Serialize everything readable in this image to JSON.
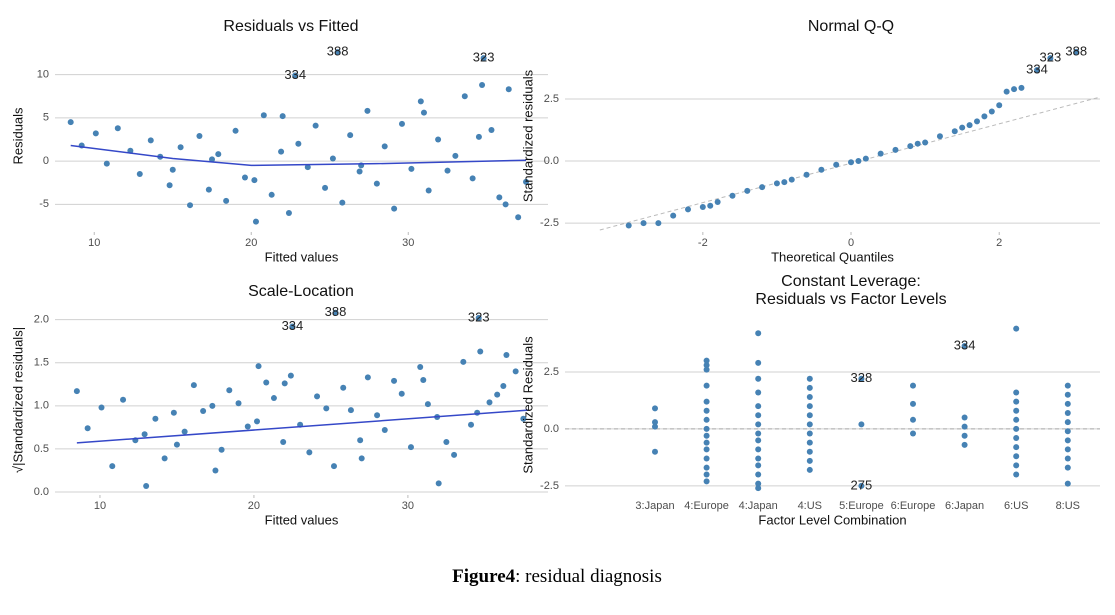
{
  "chart_data": [
    {
      "type": "scatter",
      "title": "Residuals vs Fitted",
      "xlabel": "Fitted values",
      "ylabel": "Residuals",
      "xlim": [
        7.5,
        38.9
      ],
      "ylim": [
        -8.2,
        14
      ],
      "xticks": [
        10,
        20,
        30
      ],
      "yticks": [
        -5,
        0,
        5,
        10
      ],
      "grid": true,
      "color": "#4682b4",
      "x": [
        8.5,
        9.2,
        10.1,
        10.8,
        11.5,
        12.3,
        12.9,
        13.6,
        14.2,
        14.8,
        15.5,
        16.1,
        16.7,
        17.3,
        17.9,
        18.4,
        19.0,
        19.6,
        20.2,
        20.8,
        21.3,
        21.9,
        22.4,
        23.0,
        23.6,
        24.1,
        24.7,
        25.2,
        25.8,
        26.3,
        26.9,
        27.4,
        28.0,
        28.5,
        29.1,
        29.6,
        30.2,
        30.8,
        31.3,
        31.9,
        32.5,
        33.0,
        33.6,
        34.1,
        34.7,
        35.3,
        35.8,
        36.4,
        37.0,
        37.5,
        20.3,
        22.0,
        31.0,
        34.5,
        36.2,
        17.5,
        27.0,
        15.0
      ],
      "y": [
        4.5,
        1.8,
        3.2,
        -0.3,
        3.8,
        1.2,
        -1.5,
        2.4,
        0.5,
        -2.8,
        1.6,
        -5.1,
        2.9,
        -3.3,
        0.8,
        -4.6,
        3.5,
        -1.9,
        -2.2,
        5.3,
        -3.9,
        1.1,
        -6.0,
        2.0,
        -0.7,
        4.1,
        -3.1,
        0.3,
        -4.8,
        3.0,
        -1.2,
        5.8,
        -2.6,
        1.7,
        -5.5,
        4.3,
        -0.9,
        6.9,
        -3.4,
        2.5,
        -1.1,
        0.6,
        7.5,
        -2.0,
        8.8,
        3.6,
        -4.2,
        8.3,
        -6.5,
        -2.4,
        -7.0,
        5.2,
        5.6,
        2.8,
        -5.0,
        0.2,
        -0.5,
        -1.0
      ],
      "smooth": {
        "color": "#3548c8",
        "x": [
          8.5,
          15,
          20,
          28,
          37.5
        ],
        "y": [
          1.8,
          0.3,
          -0.5,
          -0.3,
          0.1
        ]
      },
      "annotations": [
        {
          "text": "388",
          "x": 25.5,
          "y": 12.6
        },
        {
          "text": "323",
          "x": 34.8,
          "y": 11.9
        },
        {
          "text": "334",
          "x": 22.8,
          "y": 9.9
        }
      ]
    },
    {
      "type": "scatter",
      "title": "Normal Q-Q",
      "xlabel": "Theoretical Quantiles",
      "ylabel": "Standardized residuals",
      "xlim": [
        -3.86,
        3.36
      ],
      "ylim": [
        -2.86,
        4.88
      ],
      "xticks": [
        -2,
        0,
        2
      ],
      "yticks": [
        -2.5,
        {
          "value": 0,
          "label": "0.0"
        },
        2.5
      ],
      "grid": true,
      "color": "#4682b4",
      "x": [
        -3.0,
        -2.6,
        -2.4,
        -2.2,
        -2.0,
        -1.8,
        -1.6,
        -1.4,
        -1.2,
        -1.0,
        -0.8,
        -0.6,
        -0.4,
        -0.2,
        0,
        0.2,
        0.4,
        0.6,
        0.8,
        1.0,
        1.2,
        1.4,
        1.6,
        1.7,
        1.8,
        1.9,
        2.0,
        2.1,
        2.2,
        2.3,
        -2.8,
        -1.9,
        -0.9,
        0.1,
        0.9,
        1.5
      ],
      "y": [
        -2.6,
        -2.5,
        -2.2,
        -1.95,
        -1.85,
        -1.65,
        -1.4,
        -1.2,
        -1.05,
        -0.9,
        -0.75,
        -0.55,
        -0.35,
        -0.15,
        -0.05,
        0.1,
        0.3,
        0.45,
        0.6,
        0.75,
        1.0,
        1.2,
        1.45,
        1.6,
        1.8,
        2.0,
        2.25,
        2.8,
        2.9,
        2.95,
        -2.5,
        -1.8,
        -0.85,
        0.0,
        0.7,
        1.35
      ],
      "reference_line": {
        "color": "#bbbbbb",
        "x": [
          -3.39,
          3.36
        ],
        "y": [
          -2.78,
          2.58
        ]
      },
      "annotations": [
        {
          "text": "388",
          "x": 3.04,
          "y": 4.4
        },
        {
          "text": "323",
          "x": 2.69,
          "y": 4.15
        },
        {
          "text": "334",
          "x": 2.51,
          "y": 3.67
        }
      ]
    },
    {
      "type": "scatter",
      "title": "Scale-Location",
      "xlabel": "Fitted values",
      "ylabel": "√|Standardized residuals|",
      "xlim": [
        7.08,
        39.1
      ],
      "ylim": [
        -0.035,
        2.17
      ],
      "xticks": [
        10,
        20,
        30
      ],
      "yticks": [
        {
          "value": 0,
          "label": "0.0"
        },
        0.5,
        {
          "value": 1,
          "label": "1.0"
        },
        1.5,
        {
          "value": 2,
          "label": "2.0"
        }
      ],
      "grid": true,
      "color": "#4682b4",
      "x": [
        8.5,
        9.2,
        10.1,
        10.8,
        11.5,
        12.3,
        12.9,
        13.6,
        14.2,
        14.8,
        15.5,
        16.1,
        16.7,
        17.3,
        17.9,
        18.4,
        19.0,
        19.6,
        20.2,
        20.8,
        21.3,
        21.9,
        22.4,
        23.0,
        23.6,
        24.1,
        24.7,
        25.2,
        25.8,
        26.3,
        26.9,
        27.4,
        28.0,
        28.5,
        29.1,
        29.6,
        30.2,
        30.8,
        31.3,
        31.9,
        32.5,
        33.0,
        33.6,
        34.1,
        34.7,
        35.3,
        35.8,
        36.4,
        37.0,
        37.5,
        20.3,
        22.0,
        31.0,
        34.5,
        36.2,
        17.5,
        27.0,
        15.0,
        13.0,
        32.0
      ],
      "y": [
        1.17,
        0.74,
        0.98,
        0.3,
        1.07,
        0.6,
        0.67,
        0.85,
        0.39,
        0.92,
        0.7,
        1.24,
        0.94,
        1.0,
        0.49,
        1.18,
        1.03,
        0.76,
        0.82,
        1.27,
        1.09,
        0.58,
        1.35,
        0.78,
        0.46,
        1.11,
        0.97,
        0.3,
        1.21,
        0.95,
        0.6,
        1.33,
        0.89,
        0.72,
        1.29,
        1.14,
        0.52,
        1.45,
        1.02,
        0.87,
        0.58,
        0.43,
        1.51,
        0.78,
        1.63,
        1.04,
        1.13,
        1.59,
        1.4,
        0.85,
        1.46,
        1.26,
        1.3,
        0.92,
        1.23,
        0.25,
        0.39,
        0.55,
        0.07,
        0.1
      ],
      "smooth": {
        "color": "#3548c8",
        "x": [
          8.5,
          37.8
        ],
        "y": [
          0.57,
          0.95
        ]
      },
      "annotations": [
        {
          "text": "388",
          "x": 25.3,
          "y": 2.08
        },
        {
          "text": "323",
          "x": 34.6,
          "y": 2.02
        },
        {
          "text": "334",
          "x": 22.5,
          "y": 1.92
        }
      ]
    },
    {
      "type": "strip",
      "title": [
        "Constant Leverage:",
        "Residuals vs Factor Levels"
      ],
      "xlabel": "Factor Level Combination",
      "ylabel": "Standardized Residuals",
      "ylim": [
        -2.9,
        5.0
      ],
      "yticks": [
        -2.5,
        {
          "value": 0,
          "label": "0.0"
        },
        2.5
      ],
      "grid": true,
      "color": "#4682b4",
      "hline": 0,
      "categories": [
        "3:Japan",
        "4:Europe",
        "4:Japan",
        "4:US",
        "5:Europe",
        "6:Europe",
        "6:Japan",
        "6:US",
        "8:US"
      ],
      "values": [
        [
          0.9,
          0.3,
          0.1,
          -1.0
        ],
        [
          3.0,
          2.8,
          2.6,
          1.9,
          1.2,
          0.8,
          0.4,
          0,
          -0.3,
          -0.6,
          -0.9,
          -1.3,
          -1.7,
          -2.0,
          -2.3
        ],
        [
          4.2,
          2.9,
          2.2,
          1.6,
          1.0,
          0.6,
          0.2,
          -0.2,
          -0.5,
          -0.9,
          -1.3,
          -1.6,
          -2.0,
          -2.4,
          -2.6
        ],
        [
          2.2,
          1.8,
          1.4,
          1.0,
          0.6,
          0.2,
          -0.2,
          -0.6,
          -1.0,
          -1.4,
          -1.8
        ],
        [
          0.2
        ],
        [
          1.9,
          1.1,
          0.4,
          -0.2
        ],
        [
          0.5,
          0.1,
          -0.3,
          -0.7
        ],
        [
          4.4,
          1.6,
          1.2,
          0.8,
          0.4,
          0,
          -0.4,
          -0.8,
          -1.2,
          -1.6,
          -2.0
        ],
        [
          1.9,
          1.5,
          1.1,
          0.7,
          0.3,
          -0.1,
          -0.5,
          -0.9,
          -1.3,
          -1.7,
          -2.4
        ]
      ],
      "annotations": [
        [],
        [],
        [],
        [],
        [
          {
            "text": "328",
            "y": 2.2
          },
          {
            "text": "275",
            "y": -2.5
          }
        ],
        [],
        [
          {
            "text": "334",
            "y": 3.64
          }
        ],
        [],
        []
      ]
    }
  ],
  "caption": {
    "label": "Figure4",
    "text": ": residual diagnosis"
  }
}
